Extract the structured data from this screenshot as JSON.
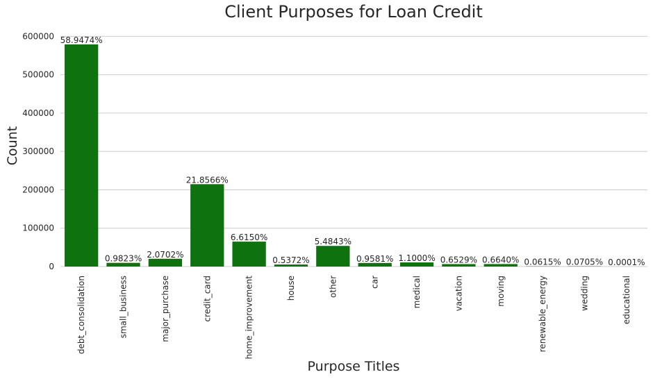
{
  "chart_data": {
    "type": "bar",
    "title": "Client Purposes for Loan Credit",
    "xlabel": "Purpose Titles",
    "ylabel": "Count",
    "categories": [
      "debt_consolidation",
      "small_business",
      "major_purchase",
      "credit_card",
      "home_improvement",
      "house",
      "other",
      "car",
      "medical",
      "vacation",
      "moving",
      "renewable_energy",
      "wedding",
      "educational"
    ],
    "values": [
      579000,
      9650,
      20330,
      214700,
      64970,
      5280,
      53870,
      9410,
      10800,
      6410,
      6520,
      600,
      690,
      1
    ],
    "data_labels": [
      "58.9474%",
      "0.9823%",
      "2.0702%",
      "21.8566%",
      "6.6150%",
      "0.5372%",
      "5.4843%",
      "0.9581%",
      "1.1000%",
      "0.6529%",
      "0.6640%",
      "0.0615%",
      "0.0705%",
      "0.0001%"
    ],
    "ylim": [
      0,
      635000
    ],
    "yticks": [
      0,
      100000,
      200000,
      300000,
      400000,
      500000,
      600000
    ],
    "ytick_labels": [
      "0",
      "100000",
      "200000",
      "300000",
      "400000",
      "500000",
      "600000"
    ],
    "grid": "horizontal",
    "bar_color": "#0e730e",
    "background_color": "#ffffff",
    "grid_color": "#cccccc"
  }
}
